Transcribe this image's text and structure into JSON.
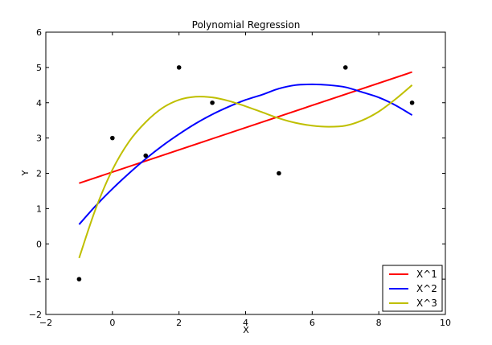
{
  "chart_data": {
    "type": "scatter",
    "title": "Polynomial Regression",
    "xlabel": "X",
    "ylabel": "Y",
    "xlim": [
      -2,
      10
    ],
    "ylim": [
      -2,
      6
    ],
    "xticks": [
      -2,
      0,
      2,
      4,
      6,
      8,
      10
    ],
    "yticks": [
      -2,
      -1,
      0,
      1,
      2,
      3,
      4,
      5,
      6
    ],
    "grid": false,
    "legend_position": "bottom-right",
    "points": [
      {
        "x": -1,
        "y": -1
      },
      {
        "x": 0,
        "y": 3
      },
      {
        "x": 1,
        "y": 2.5
      },
      {
        "x": 2,
        "y": 5
      },
      {
        "x": 3,
        "y": 4
      },
      {
        "x": 5,
        "y": 2
      },
      {
        "x": 7,
        "y": 5
      },
      {
        "x": 9,
        "y": 4
      }
    ],
    "point_color": "#000000",
    "series": [
      {
        "name": "X^1",
        "color": "#ff0000",
        "x": [
          -1,
          9
        ],
        "y": [
          1.72,
          4.87
        ]
      },
      {
        "name": "X^2",
        "color": "#0000ff",
        "x": [
          -1,
          -0.5,
          0,
          0.5,
          1,
          1.5,
          2,
          2.5,
          3,
          3.5,
          4,
          4.5,
          5,
          5.5,
          6,
          6.5,
          7,
          7.5,
          8,
          8.5,
          9
        ],
        "y": [
          0.55,
          1.08,
          1.56,
          2.0,
          2.41,
          2.78,
          3.11,
          3.41,
          3.67,
          3.89,
          4.08,
          4.23,
          4.4,
          4.5,
          4.52,
          4.5,
          4.44,
          4.3,
          4.15,
          3.93,
          3.65
        ]
      },
      {
        "name": "X^3",
        "color": "#bfbf00",
        "x": [
          -1,
          -0.5,
          0,
          0.5,
          1,
          1.5,
          2,
          2.5,
          3,
          3.5,
          4,
          4.5,
          5,
          5.5,
          6,
          6.5,
          7,
          7.5,
          8,
          8.5,
          9
        ],
        "y": [
          -0.4,
          1.0,
          2.1,
          2.9,
          3.45,
          3.85,
          4.08,
          4.17,
          4.15,
          4.05,
          3.9,
          3.73,
          3.56,
          3.43,
          3.35,
          3.32,
          3.35,
          3.5,
          3.75,
          4.1,
          4.5
        ]
      }
    ]
  }
}
